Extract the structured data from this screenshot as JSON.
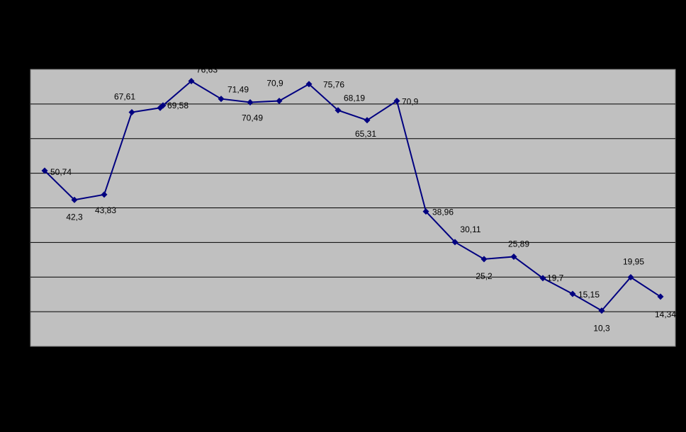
{
  "chart_data": {
    "type": "line",
    "title": "",
    "xlabel": "",
    "ylabel": "",
    "ylim": [
      0,
      80
    ],
    "grid": true,
    "colors": {
      "background": "#000000",
      "plot_area": "#C0C0C0",
      "gridline": "#000000",
      "series": "#000080"
    },
    "series": [
      {
        "name": "",
        "values": [
          50.74,
          42.3,
          43.83,
          67.61,
          68.9,
          69.58,
          76.63,
          71.49,
          70.49,
          70.9,
          75.76,
          68.19,
          65.31,
          70.9,
          38.96,
          30.11,
          25.2,
          25.89,
          19.7,
          15.15,
          10.3,
          19.95,
          14.34
        ],
        "labels": [
          "50,74",
          "42,3",
          "43,83",
          "67,61",
          "",
          "69,58",
          "76,63",
          "71,49",
          "70,49",
          "70,9",
          "75,76",
          "68,19",
          "65,31",
          "70,9",
          "38,96",
          "30,11",
          "25,2",
          "25,89",
          "19,7",
          "15,15",
          "10,3",
          "19,95",
          "14,34"
        ]
      }
    ]
  }
}
